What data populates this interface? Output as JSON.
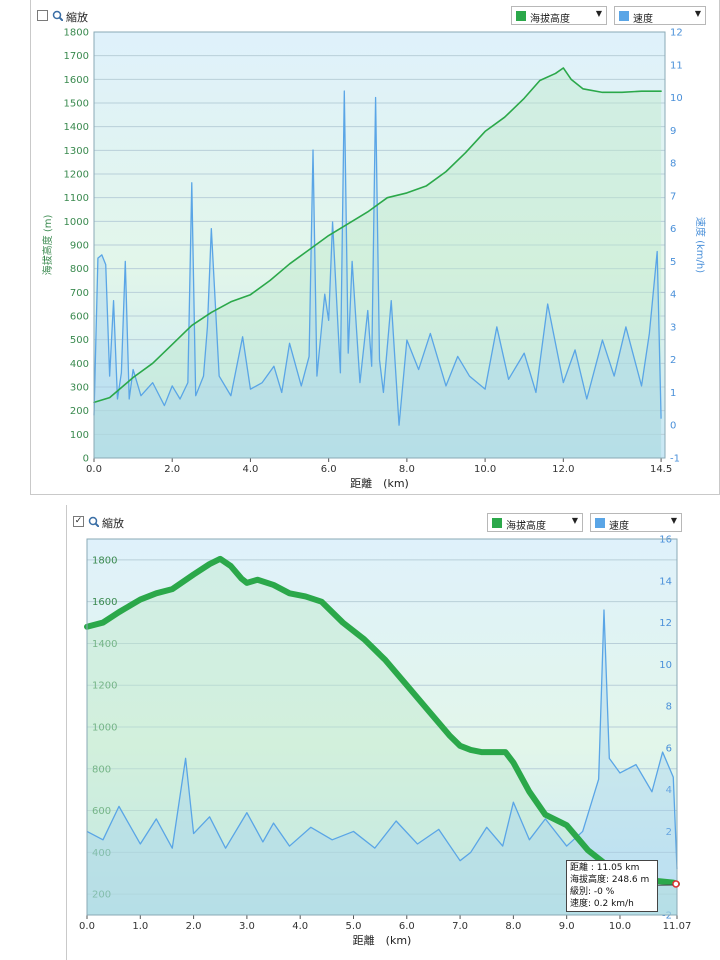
{
  "colors": {
    "elevation": "#2ba84a",
    "speed": "#5aa5e6",
    "left_axis": "#3a8a4f",
    "right_axis": "#4a90d9",
    "bottom_axis": "#333333"
  },
  "panels": [
    {
      "zoom_label": "縮放",
      "zoom_checked": false,
      "series1_select": "海拔高度",
      "series2_select": "速度",
      "checkbox_mark": ""
    },
    {
      "zoom_label": "縮放",
      "zoom_checked": true,
      "series1_select": "海拔高度",
      "series2_select": "速度",
      "checkbox_mark": "✓",
      "tooltip": {
        "distance": "距離 : 11.05 km",
        "elevation": "海拔高度: 248.6 m",
        "grade": "級別: -0 %",
        "speed": "速度: 0.2 km/h"
      }
    }
  ],
  "chart_data": [
    {
      "type": "line",
      "title": "",
      "xlabel": "距離　(km)",
      "ylabel_left": "海拔高度 (m)",
      "ylabel_right": "速度 (km/h)",
      "xlim": [
        0,
        14.6
      ],
      "ylim_left": [
        0,
        1800
      ],
      "ylim_right": [
        -1,
        12
      ],
      "x_ticks": [
        "0.0",
        "2.0",
        "4.0",
        "6.0",
        "8.0",
        "10.0",
        "12.0",
        "14.5"
      ],
      "left_ticks": [
        "0",
        "100",
        "200",
        "300",
        "400",
        "500",
        "600",
        "700",
        "800",
        "900",
        "1000",
        "1100",
        "1200",
        "1300",
        "1400",
        "1500",
        "1600",
        "1700",
        "1800"
      ],
      "right_ticks": [
        "-1",
        "0",
        "1",
        "2",
        "3",
        "4",
        "5",
        "6",
        "7",
        "8",
        "9",
        "10",
        "11",
        "12"
      ],
      "grid": true,
      "series": [
        {
          "name": "海拔高度",
          "axis": "left",
          "x": [
            0,
            0.4,
            1.0,
            1.5,
            2.0,
            2.5,
            3.0,
            3.5,
            4.0,
            4.5,
            5.0,
            5.5,
            6.0,
            6.5,
            7.0,
            7.5,
            8.0,
            8.5,
            9.0,
            9.5,
            10.0,
            10.5,
            11.0,
            11.4,
            11.8,
            12.0,
            12.2,
            12.5,
            13.0,
            13.5,
            14.0,
            14.5
          ],
          "values": [
            235,
            255,
            340,
            400,
            480,
            560,
            615,
            660,
            690,
            750,
            820,
            880,
            940,
            990,
            1040,
            1100,
            1120,
            1150,
            1210,
            1290,
            1380,
            1440,
            1520,
            1595,
            1625,
            1648,
            1600,
            1560,
            1545,
            1545,
            1550,
            1550
          ]
        },
        {
          "name": "速度",
          "axis": "right",
          "x": [
            0,
            0.1,
            0.2,
            0.3,
            0.4,
            0.5,
            0.6,
            0.7,
            0.8,
            0.9,
            1.0,
            1.2,
            1.5,
            1.8,
            2.0,
            2.2,
            2.4,
            2.5,
            2.6,
            2.8,
            2.9,
            3.0,
            3.2,
            3.5,
            3.8,
            4.0,
            4.3,
            4.6,
            4.8,
            5.0,
            5.3,
            5.5,
            5.6,
            5.7,
            5.9,
            6.0,
            6.1,
            6.3,
            6.4,
            6.5,
            6.6,
            6.8,
            7.0,
            7.1,
            7.2,
            7.3,
            7.4,
            7.6,
            7.8,
            8.0,
            8.3,
            8.6,
            9.0,
            9.3,
            9.6,
            10.0,
            10.3,
            10.6,
            11.0,
            11.3,
            11.6,
            12.0,
            12.3,
            12.6,
            13.0,
            13.3,
            13.6,
            14.0,
            14.2,
            14.4,
            14.5
          ],
          "values": [
            0.3,
            5.1,
            5.2,
            4.9,
            1.5,
            3.8,
            0.8,
            1.6,
            5.0,
            0.8,
            1.7,
            0.9,
            1.3,
            0.6,
            1.2,
            0.8,
            1.3,
            7.4,
            0.9,
            1.5,
            3.0,
            6.0,
            1.5,
            0.9,
            2.7,
            1.1,
            1.3,
            1.8,
            1.0,
            2.5,
            1.2,
            2.1,
            8.4,
            1.5,
            4.0,
            3.2,
            6.2,
            1.6,
            10.2,
            2.2,
            5.0,
            1.3,
            3.5,
            1.8,
            10.0,
            2.0,
            1.0,
            3.8,
            0.0,
            2.6,
            1.7,
            2.8,
            1.2,
            2.1,
            1.5,
            1.1,
            3.0,
            1.4,
            2.2,
            1.0,
            3.7,
            1.3,
            2.3,
            0.8,
            2.6,
            1.5,
            3.0,
            1.2,
            2.8,
            5.3,
            0.2
          ]
        }
      ]
    },
    {
      "type": "line",
      "title": "",
      "xlabel": "距離　(km)",
      "xlim": [
        0,
        11.07
      ],
      "ylim_left": [
        100,
        1900
      ],
      "ylim_right": [
        -2,
        16
      ],
      "x_ticks": [
        "0.0",
        "1.0",
        "2.0",
        "3.0",
        "4.0",
        "5.0",
        "6.0",
        "7.0",
        "8.0",
        "9.0",
        "10.0",
        "11.07"
      ],
      "left_ticks": [
        "200",
        "400",
        "600",
        "800",
        "1000",
        "1200",
        "1400",
        "1600",
        "1800"
      ],
      "right_ticks": [
        "-2",
        "2",
        "4",
        "6",
        "8",
        "10",
        "12",
        "14",
        "16"
      ],
      "grid": true,
      "series": [
        {
          "name": "海拔高度",
          "axis": "left",
          "x": [
            0,
            0.3,
            0.6,
            1.0,
            1.3,
            1.6,
            2.0,
            2.3,
            2.5,
            2.7,
            2.9,
            3.0,
            3.2,
            3.5,
            3.8,
            4.1,
            4.4,
            4.8,
            5.2,
            5.6,
            6.0,
            6.4,
            6.8,
            7.0,
            7.2,
            7.4,
            7.7,
            7.85,
            8.0,
            8.3,
            8.6,
            9.0,
            9.4,
            9.8,
            10.2,
            10.6,
            11.0,
            11.07
          ],
          "values": [
            1480,
            1500,
            1550,
            1610,
            1640,
            1660,
            1730,
            1780,
            1805,
            1770,
            1710,
            1690,
            1705,
            1680,
            1640,
            1625,
            1600,
            1500,
            1420,
            1320,
            1200,
            1080,
            960,
            910,
            890,
            880,
            880,
            880,
            830,
            690,
            580,
            530,
            410,
            330,
            280,
            265,
            255,
            248.6
          ]
        },
        {
          "name": "速度",
          "axis": "right",
          "x": [
            0,
            0.3,
            0.6,
            1.0,
            1.3,
            1.6,
            1.85,
            2.0,
            2.3,
            2.6,
            3.0,
            3.3,
            3.5,
            3.8,
            4.2,
            4.6,
            5.0,
            5.4,
            5.8,
            6.2,
            6.6,
            7.0,
            7.2,
            7.5,
            7.8,
            8.0,
            8.3,
            8.6,
            9.0,
            9.3,
            9.6,
            9.7,
            9.8,
            10.0,
            10.3,
            10.6,
            10.8,
            11.0,
            11.07
          ],
          "values": [
            2.0,
            1.6,
            3.2,
            1.4,
            2.6,
            1.2,
            5.5,
            1.9,
            2.7,
            1.2,
            2.9,
            1.5,
            2.4,
            1.3,
            2.2,
            1.6,
            2.0,
            1.2,
            2.5,
            1.4,
            2.1,
            0.6,
            1.0,
            2.2,
            1.3,
            3.4,
            1.6,
            2.6,
            1.3,
            2.0,
            4.5,
            12.6,
            5.5,
            4.8,
            5.2,
            3.9,
            5.8,
            4.6,
            0.2
          ]
        }
      ]
    }
  ]
}
